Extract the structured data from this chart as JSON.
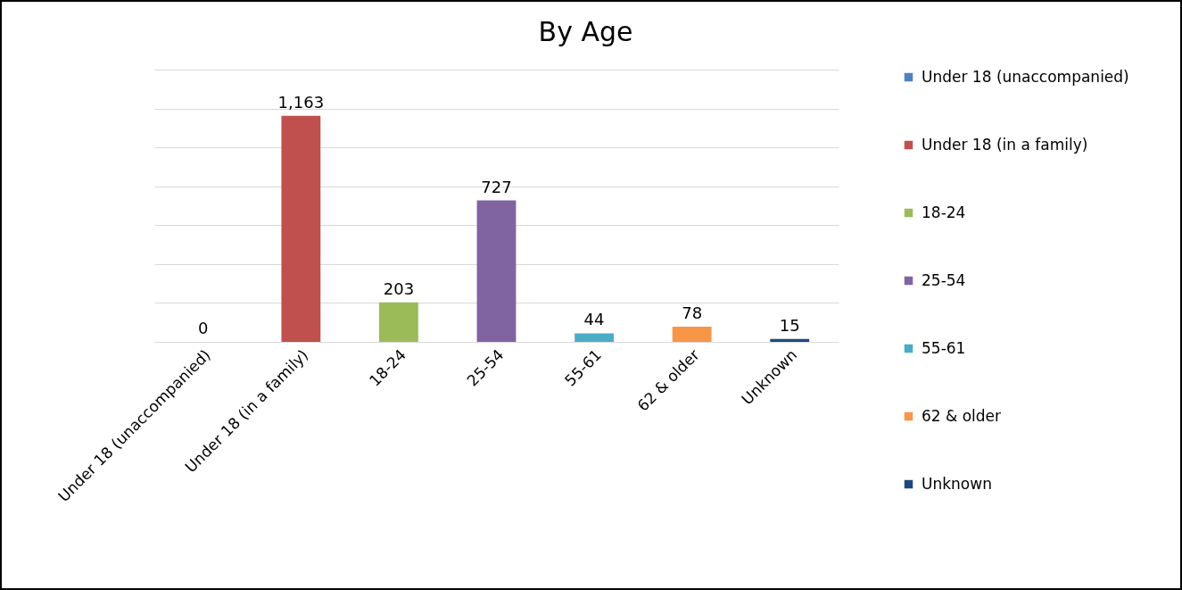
{
  "chart_data": {
    "type": "bar",
    "title": "By Age",
    "categories": [
      "Under 18 (unaccompanied)",
      "Under 18 (in a family)",
      "18-24",
      "25-54",
      "55-61",
      "62 & older",
      "Unknown"
    ],
    "series": [
      {
        "name": "Under 18 (unaccompanied)",
        "color": "#4f81bd",
        "values": [
          0,
          null,
          null,
          null,
          null,
          null,
          null
        ],
        "value_labels": [
          "0",
          null,
          null,
          null,
          null,
          null,
          null
        ]
      },
      {
        "name": "Under 18 (in a family)",
        "color": "#c0504d",
        "values": [
          null,
          1163,
          null,
          null,
          null,
          null,
          null
        ],
        "value_labels": [
          null,
          "1,163",
          null,
          null,
          null,
          null,
          null
        ]
      },
      {
        "name": "18-24",
        "color": "#9bbb59",
        "values": [
          null,
          null,
          203,
          null,
          null,
          null,
          null
        ],
        "value_labels": [
          null,
          null,
          "203",
          null,
          null,
          null,
          null
        ]
      },
      {
        "name": "25-54",
        "color": "#8064a2",
        "values": [
          null,
          null,
          null,
          727,
          null,
          null,
          null
        ],
        "value_labels": [
          null,
          null,
          null,
          "727",
          null,
          null,
          null
        ]
      },
      {
        "name": "55-61",
        "color": "#4bacc6",
        "values": [
          null,
          null,
          null,
          null,
          44,
          null,
          null
        ],
        "value_labels": [
          null,
          null,
          null,
          null,
          "44",
          null,
          null
        ]
      },
      {
        "name": "62 & older",
        "color": "#f79646",
        "values": [
          null,
          null,
          null,
          null,
          null,
          78,
          null
        ],
        "value_labels": [
          null,
          null,
          null,
          null,
          null,
          "78",
          null
        ]
      },
      {
        "name": "Unknown",
        "color": "#1f497d",
        "values": [
          null,
          null,
          null,
          null,
          null,
          null,
          15
        ],
        "value_labels": [
          null,
          null,
          null,
          null,
          null,
          null,
          "15"
        ]
      }
    ],
    "ylim": [
      0,
      1400
    ],
    "yticks": [
      {
        "value": 0,
        "label": null
      },
      {
        "value": 200,
        "label": null
      },
      {
        "value": 400,
        "label": null
      },
      {
        "value": 600,
        "label": null
      },
      {
        "value": 800,
        "label": null
      },
      {
        "value": 1000,
        "label": null
      },
      {
        "value": 1200,
        "label": null
      },
      {
        "value": 1400,
        "label": null
      }
    ],
    "grid": "y",
    "legend": "right",
    "tick_labels": "x"
  }
}
